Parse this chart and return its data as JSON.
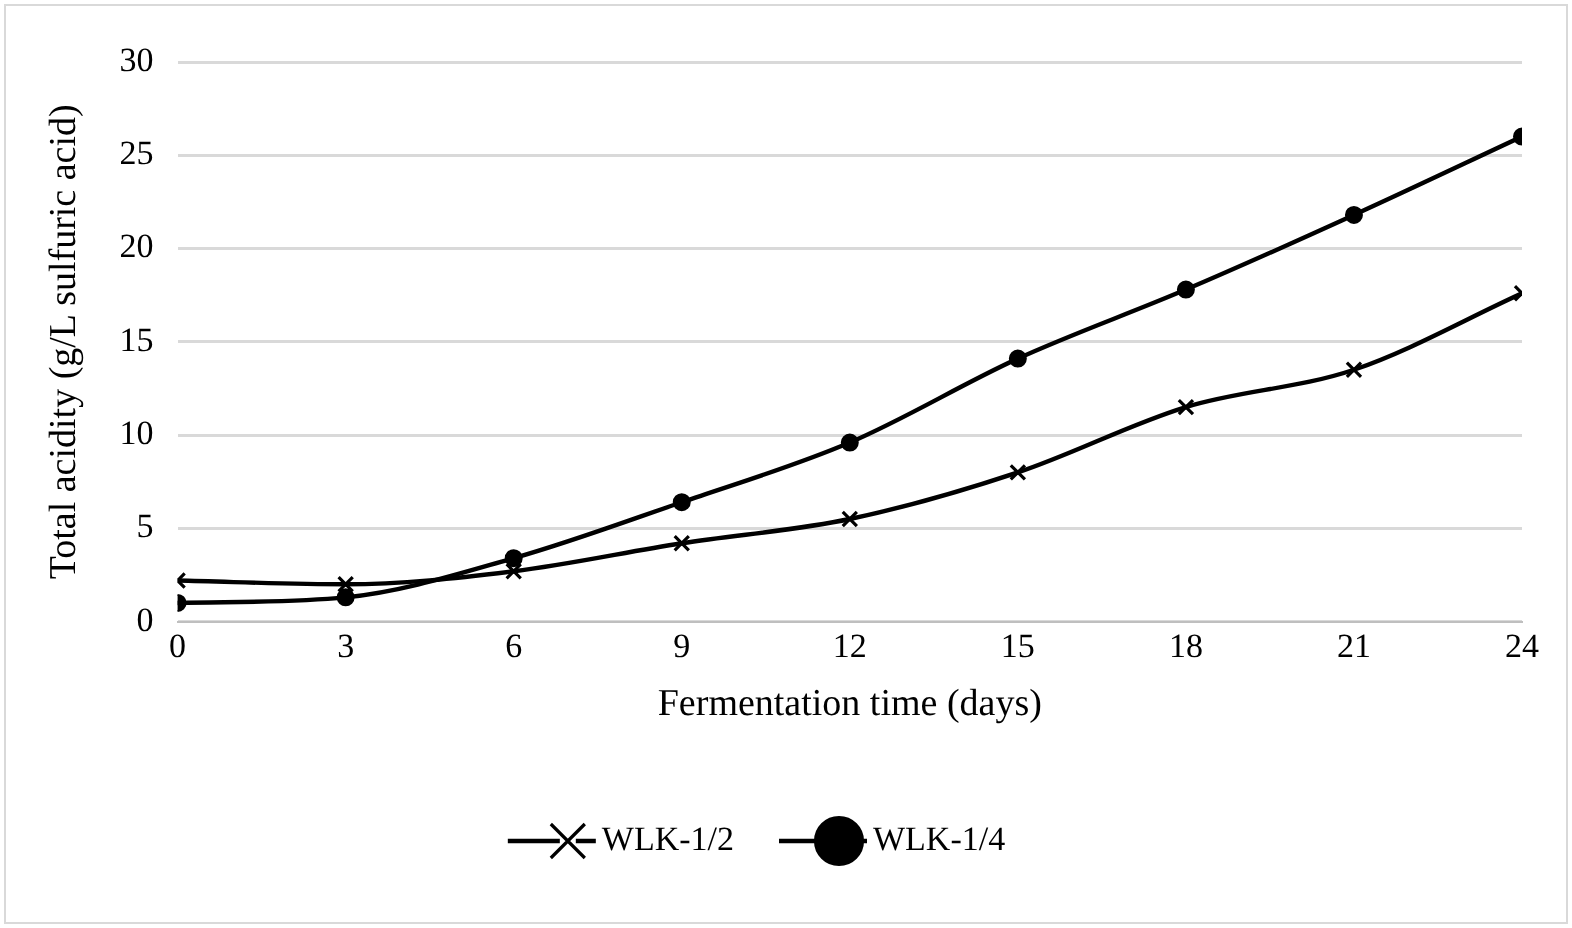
{
  "chart_data": {
    "type": "line",
    "xlabel": "Fermentation time (days)",
    "ylabel": "Total acidity (g/L sulfuric acid)",
    "x": [
      0,
      3,
      6,
      9,
      12,
      15,
      18,
      21,
      24
    ],
    "series": [
      {
        "name": "WLK-1/2",
        "color": "#000000",
        "marker": "cross",
        "values": [
          2.2,
          2.0,
          2.7,
          4.2,
          5.5,
          8.0,
          11.5,
          13.5,
          17.6
        ]
      },
      {
        "name": "WLK-1/4",
        "color": "#000000",
        "marker": "circle",
        "values": [
          1.0,
          1.3,
          3.4,
          6.4,
          9.6,
          14.1,
          17.8,
          21.8,
          26.0
        ]
      }
    ],
    "xlim": [
      0,
      24
    ],
    "xticks": [
      0,
      3,
      6,
      9,
      12,
      15,
      18,
      21,
      24
    ],
    "ylim": [
      0,
      30
    ],
    "yticks": [
      0,
      5,
      10,
      15,
      20,
      25,
      30
    ],
    "grid": "y",
    "legend": "bottom",
    "line_style": "solid"
  }
}
